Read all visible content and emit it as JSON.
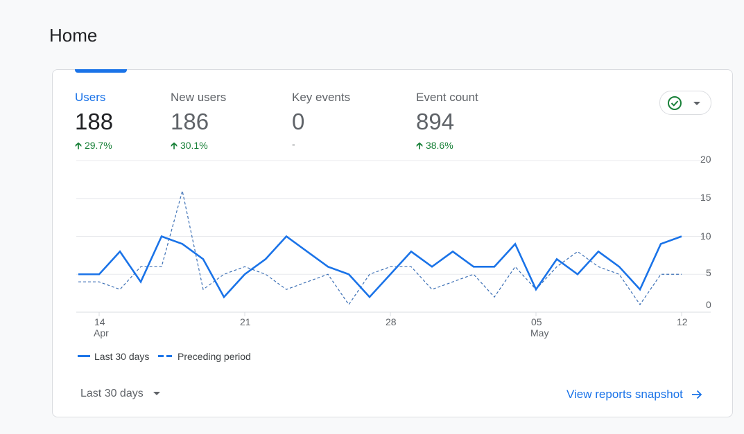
{
  "page_title": "Home",
  "metrics": [
    {
      "label": "Users",
      "value": "188",
      "change": "29.7%",
      "direction": "up"
    },
    {
      "label": "New users",
      "value": "186",
      "change": "30.1%",
      "direction": "up"
    },
    {
      "label": "Key events",
      "value": "0",
      "change": "-",
      "direction": "none"
    },
    {
      "label": "Event count",
      "value": "894",
      "change": "38.6%",
      "direction": "up"
    }
  ],
  "status_icon": "check-circle-icon",
  "colors": {
    "accent": "#1a73e8",
    "positive": "#188038",
    "status": "#188038"
  },
  "chart_data": {
    "type": "line",
    "x": [
      "Apr 13",
      "Apr 14",
      "Apr 15",
      "Apr 16",
      "Apr 17",
      "Apr 18",
      "Apr 19",
      "Apr 20",
      "Apr 21",
      "Apr 22",
      "Apr 23",
      "Apr 24",
      "Apr 25",
      "Apr 26",
      "Apr 27",
      "Apr 28",
      "Apr 29",
      "Apr 30",
      "May 01",
      "May 02",
      "May 03",
      "May 04",
      "May 05",
      "May 06",
      "May 07",
      "May 08",
      "May 09",
      "May 10",
      "May 11",
      "May 12"
    ],
    "series": [
      {
        "name": "Last 30 days",
        "style": "solid",
        "values": [
          5,
          5,
          8,
          4,
          10,
          9,
          7,
          2,
          5,
          7,
          10,
          8,
          6,
          5,
          2,
          5,
          8,
          6,
          8,
          6,
          6,
          9,
          3,
          7,
          5,
          8,
          6,
          3,
          9,
          10
        ]
      },
      {
        "name": "Preceding period",
        "style": "dashed",
        "values": [
          4,
          4,
          3,
          6,
          6,
          16,
          3,
          5,
          6,
          5,
          3,
          4,
          5,
          1,
          5,
          6,
          6,
          3,
          4,
          5,
          2,
          6,
          3,
          6,
          8,
          6,
          5,
          1,
          5,
          5
        ]
      }
    ],
    "x_ticks": [
      {
        "index": 1,
        "label": "14",
        "sub": "Apr"
      },
      {
        "index": 8,
        "label": "21",
        "sub": ""
      },
      {
        "index": 15,
        "label": "28",
        "sub": ""
      },
      {
        "index": 22,
        "label": "05",
        "sub": "May"
      },
      {
        "index": 29,
        "label": "12",
        "sub": ""
      }
    ],
    "y_ticks": [
      "0",
      "5",
      "10",
      "15",
      "20"
    ],
    "ylim": [
      0,
      20
    ],
    "grid": true,
    "legend_position": "bottom-left"
  },
  "footer": {
    "date_range": "Last 30 days",
    "view_link": "View reports snapshot"
  }
}
